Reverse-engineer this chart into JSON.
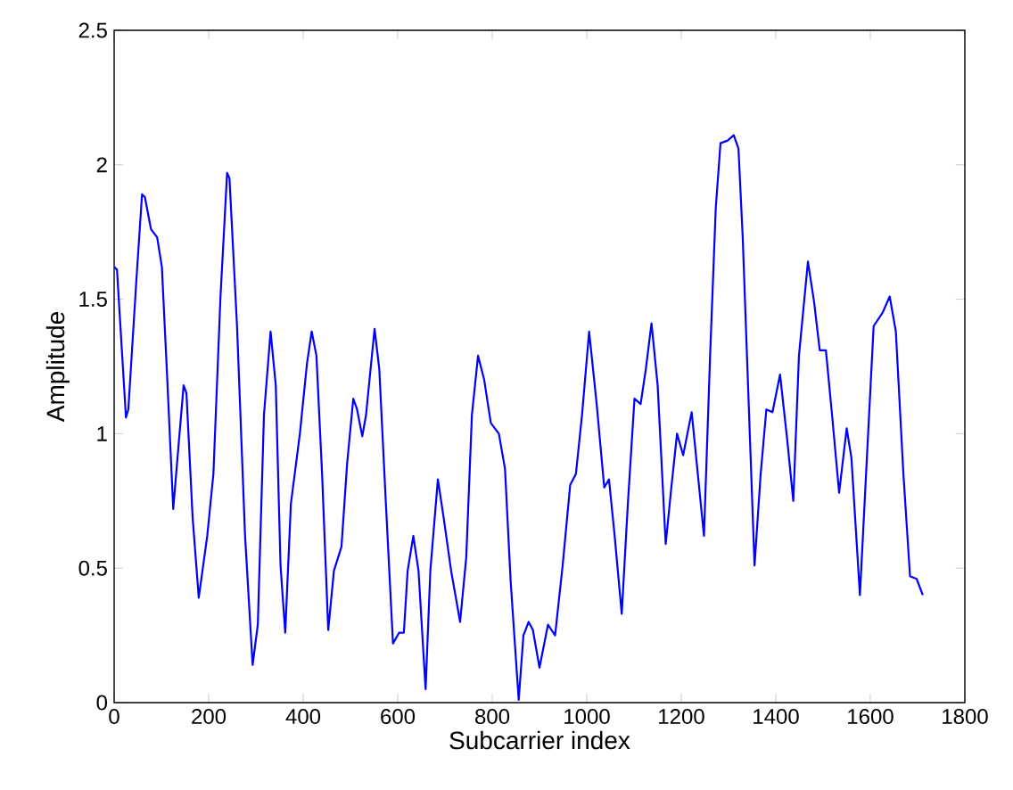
{
  "chart_data": {
    "type": "line",
    "xlabel": "Subcarrier index",
    "ylabel": "Amplitude",
    "xlim": [
      0,
      1800
    ],
    "ylim": [
      0,
      2.5
    ],
    "xticks": [
      0,
      200,
      400,
      600,
      800,
      1000,
      1200,
      1400,
      1600,
      1800
    ],
    "yticks": [
      0,
      0.5,
      1,
      1.5,
      2,
      2.5
    ],
    "grid": false,
    "marker": "none",
    "line_style": "solid",
    "series": [
      {
        "color": "#0000ff",
        "x": [
          0,
          6,
          25,
          30,
          47,
          59,
          65,
          78,
          91,
          101,
          113,
          125,
          135,
          147,
          153,
          166,
          179,
          197,
          210,
          225,
          239,
          244,
          260,
          277,
          293,
          304,
          317,
          331,
          342,
          352,
          362,
          374,
          393,
          408,
          418,
          428,
          440,
          453,
          465,
          481,
          493,
          506,
          514,
          525,
          533,
          551,
          561,
          575,
          590,
          603,
          613,
          621,
          633,
          644,
          659,
          669,
          685,
          697,
          713,
          732,
          745,
          757,
          770,
          783,
          797,
          814,
          827,
          839,
          856,
          866,
          877,
          886,
          900,
          918,
          933,
          949,
          965,
          977,
          990,
          1005,
          1021,
          1037,
          1047,
          1059,
          1074,
          1087,
          1101,
          1114,
          1125,
          1137,
          1150,
          1167,
          1179,
          1191,
          1204,
          1222,
          1235,
          1248,
          1261,
          1273,
          1283,
          1298,
          1311,
          1321,
          1330,
          1339,
          1355,
          1368,
          1380,
          1393,
          1409,
          1424,
          1437,
          1449,
          1468,
          1481,
          1493,
          1506,
          1519,
          1534,
          1550,
          1560,
          1578,
          1591,
          1607,
          1626,
          1641,
          1654,
          1670,
          1684,
          1698,
          1711
        ],
        "values": [
          1.62,
          1.61,
          1.06,
          1.09,
          1.57,
          1.89,
          1.88,
          1.76,
          1.73,
          1.62,
          1.18,
          0.72,
          0.93,
          1.18,
          1.15,
          0.69,
          0.39,
          0.62,
          0.85,
          1.51,
          1.97,
          1.95,
          1.4,
          0.62,
          0.14,
          0.29,
          1.07,
          1.38,
          1.18,
          0.51,
          0.26,
          0.74,
          1.0,
          1.26,
          1.38,
          1.29,
          0.85,
          0.27,
          0.49,
          0.58,
          0.89,
          1.13,
          1.09,
          0.99,
          1.07,
          1.39,
          1.24,
          0.74,
          0.22,
          0.26,
          0.26,
          0.49,
          0.62,
          0.49,
          0.05,
          0.49,
          0.83,
          0.69,
          0.49,
          0.3,
          0.54,
          1.07,
          1.29,
          1.2,
          1.04,
          1.0,
          0.87,
          0.45,
          0.01,
          0.25,
          0.3,
          0.27,
          0.13,
          0.29,
          0.25,
          0.51,
          0.81,
          0.85,
          1.07,
          1.38,
          1.11,
          0.8,
          0.83,
          0.62,
          0.33,
          0.74,
          1.13,
          1.11,
          1.24,
          1.41,
          1.18,
          0.59,
          0.8,
          1.0,
          0.92,
          1.08,
          0.85,
          0.62,
          1.29,
          1.84,
          2.08,
          2.09,
          2.11,
          2.06,
          1.73,
          1.29,
          0.51,
          0.85,
          1.09,
          1.08,
          1.22,
          0.98,
          0.75,
          1.29,
          1.64,
          1.49,
          1.31,
          1.31,
          1.07,
          0.78,
          1.02,
          0.91,
          0.4,
          0.85,
          1.4,
          1.45,
          1.51,
          1.38,
          0.85,
          0.47,
          0.46,
          0.4
        ]
      }
    ]
  }
}
